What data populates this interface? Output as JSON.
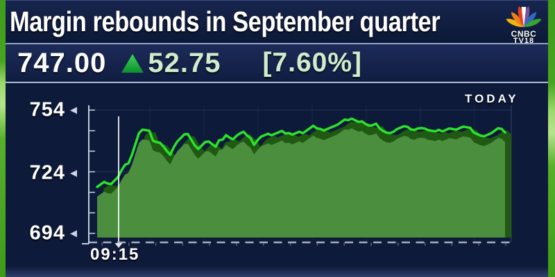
{
  "header": {
    "title": "Margin rebounds in September quarter"
  },
  "logo": {
    "line1": "CNBC",
    "line2": "TV18",
    "feather_colors": [
      "#f2b411",
      "#ee7f1b",
      "#e6401e",
      "#7d4fa0",
      "#2e6cc0",
      "#36a432"
    ]
  },
  "ticker": {
    "price": "747.00",
    "direction": "up",
    "change": "52.75",
    "change_pct": "[7.60%]",
    "up_color": "#1ea23e",
    "text_green": "#cfeccc"
  },
  "chart_data": {
    "type": "area",
    "period_label": "TODAY",
    "x_start_label": "09:15",
    "y_ticks": [
      "754",
      "724",
      "694"
    ],
    "y_tick_values": [
      754,
      724,
      694
    ],
    "ylim": [
      688,
      758
    ],
    "grid": "faint",
    "legend_position": "top-right",
    "cursor_at_label": "09:15",
    "colors": {
      "line": "#2be32b",
      "fill": "#4c9140",
      "shadow_fill": "#215c12",
      "axis": "#c3cbdc"
    },
    "series": [
      {
        "name": "price",
        "values": [
          717.5,
          718.5,
          719.5,
          718.5,
          718,
          719.5,
          721,
          724,
          726.5,
          729,
          733,
          738,
          743,
          744.5,
          744,
          743.5,
          738.5,
          737.5,
          739,
          737,
          734.5,
          732.5,
          736,
          738.5,
          740,
          741.5,
          741.5,
          740.5,
          737.5,
          735.5,
          737,
          738.5,
          738.5,
          737,
          735.5,
          738.5,
          740.5,
          742.5,
          741,
          740,
          741.5,
          742.5,
          743,
          741,
          739.5,
          738,
          740,
          741.5,
          742,
          742.5,
          741.5,
          742,
          742.5,
          743,
          743.5,
          743.5,
          742.5,
          743,
          743.5,
          742.5,
          743.5,
          744.5,
          745.5,
          746,
          745.5,
          744.5,
          745,
          745.5,
          746,
          746.5,
          747.5,
          748.5,
          750,
          750.5,
          749.5,
          748.5,
          748.5,
          747,
          746,
          746,
          746.5,
          746,
          744.5,
          743.5,
          743,
          743.5,
          744.5,
          745,
          745.5,
          745,
          745.5,
          745,
          745.5,
          745.5,
          745,
          744,
          743.5,
          743,
          743.5,
          744.5,
          745,
          745.5,
          745,
          744.5,
          745,
          745.5,
          745,
          744.5,
          744,
          743,
          742,
          741.5,
          742,
          742.5,
          743.5,
          744.5,
          744,
          744
        ]
      }
    ]
  }
}
